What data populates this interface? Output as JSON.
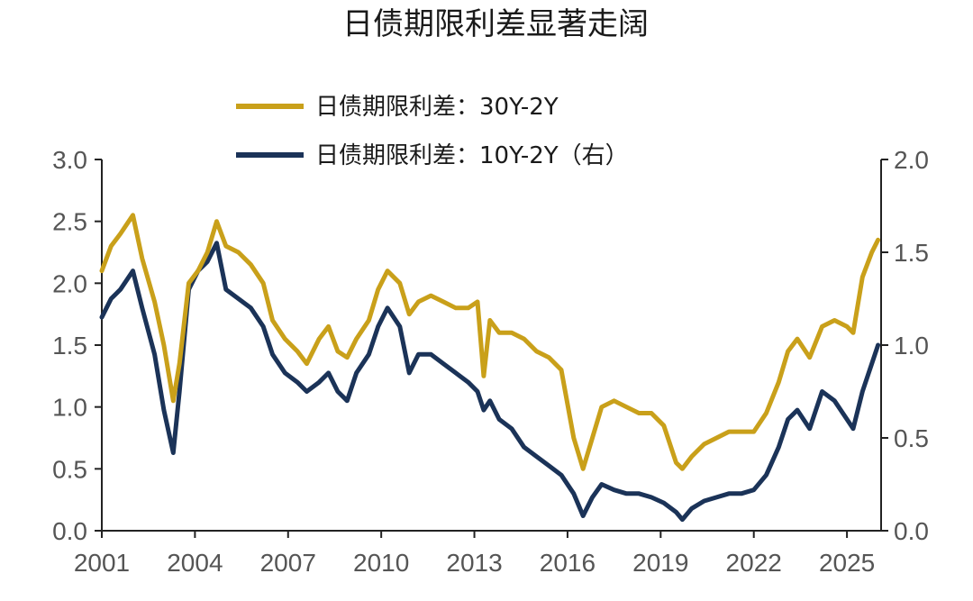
{
  "chart_data": {
    "type": "line",
    "title": "日债期限利差显著走阔",
    "xlabel": "",
    "ylabel": "",
    "x_ticks": [
      "2001",
      "2004",
      "2007",
      "2010",
      "2013",
      "2016",
      "2019",
      "2022",
      "2025"
    ],
    "xlim": [
      2001,
      2026.1
    ],
    "ylim_left": [
      0,
      3.0
    ],
    "ylim_right": [
      0,
      2.0
    ],
    "y_ticks_left": [
      "0.0",
      "0.5",
      "1.0",
      "1.5",
      "2.0",
      "2.5",
      "3.0"
    ],
    "y_ticks_right": [
      "0.0",
      "0.5",
      "1.0",
      "1.5",
      "2.0"
    ],
    "grid": false,
    "legend_position": "top-center",
    "series": [
      {
        "name": "日债期限利差：30Y-2Y",
        "axis": "left",
        "color": "#C9A01A",
        "x": [
          2001.0,
          2001.3,
          2001.6,
          2002.0,
          2002.3,
          2002.7,
          2003.0,
          2003.3,
          2003.5,
          2003.8,
          2004.1,
          2004.4,
          2004.7,
          2005.0,
          2005.4,
          2005.8,
          2006.2,
          2006.5,
          2006.9,
          2007.3,
          2007.6,
          2008.0,
          2008.3,
          2008.6,
          2008.9,
          2009.2,
          2009.6,
          2009.9,
          2010.2,
          2010.6,
          2010.9,
          2011.2,
          2011.6,
          2012.0,
          2012.4,
          2012.8,
          2013.1,
          2013.3,
          2013.5,
          2013.8,
          2014.2,
          2014.6,
          2015.0,
          2015.4,
          2015.8,
          2016.2,
          2016.5,
          2016.8,
          2017.1,
          2017.5,
          2017.9,
          2018.3,
          2018.7,
          2019.1,
          2019.5,
          2019.7,
          2020.0,
          2020.4,
          2020.8,
          2021.2,
          2021.6,
          2022.0,
          2022.4,
          2022.8,
          2023.1,
          2023.4,
          2023.8,
          2024.2,
          2024.6,
          2025.0,
          2025.2,
          2025.5,
          2025.8,
          2026.0
        ],
        "values": [
          2.1,
          2.3,
          2.4,
          2.55,
          2.2,
          1.85,
          1.5,
          1.05,
          1.35,
          2.0,
          2.1,
          2.25,
          2.5,
          2.3,
          2.25,
          2.15,
          2.0,
          1.7,
          1.55,
          1.45,
          1.35,
          1.55,
          1.65,
          1.45,
          1.4,
          1.55,
          1.7,
          1.95,
          2.1,
          2.0,
          1.75,
          1.85,
          1.9,
          1.85,
          1.8,
          1.8,
          1.85,
          1.25,
          1.7,
          1.6,
          1.6,
          1.55,
          1.45,
          1.4,
          1.3,
          0.75,
          0.5,
          0.75,
          1.0,
          1.05,
          1.0,
          0.95,
          0.95,
          0.85,
          0.55,
          0.5,
          0.6,
          0.7,
          0.75,
          0.8,
          0.8,
          0.8,
          0.95,
          1.2,
          1.45,
          1.55,
          1.4,
          1.65,
          1.7,
          1.65,
          1.6,
          2.05,
          2.25,
          2.35
        ]
      },
      {
        "name": "日债期限利差：10Y-2Y（右）",
        "axis": "right",
        "color": "#1B3358",
        "x": [
          2001.0,
          2001.3,
          2001.6,
          2002.0,
          2002.3,
          2002.7,
          2003.0,
          2003.3,
          2003.5,
          2003.8,
          2004.1,
          2004.4,
          2004.7,
          2005.0,
          2005.4,
          2005.8,
          2006.2,
          2006.5,
          2006.9,
          2007.3,
          2007.6,
          2008.0,
          2008.3,
          2008.6,
          2008.9,
          2009.2,
          2009.6,
          2009.9,
          2010.2,
          2010.6,
          2010.9,
          2011.2,
          2011.6,
          2012.0,
          2012.4,
          2012.8,
          2013.1,
          2013.3,
          2013.5,
          2013.8,
          2014.2,
          2014.6,
          2015.0,
          2015.4,
          2015.8,
          2016.2,
          2016.5,
          2016.8,
          2017.1,
          2017.5,
          2017.9,
          2018.3,
          2018.7,
          2019.1,
          2019.5,
          2019.7,
          2020.0,
          2020.4,
          2020.8,
          2021.2,
          2021.6,
          2022.0,
          2022.4,
          2022.8,
          2023.1,
          2023.4,
          2023.8,
          2024.2,
          2024.6,
          2025.0,
          2025.2,
          2025.5,
          2025.8,
          2026.0
        ],
        "values": [
          1.15,
          1.25,
          1.3,
          1.4,
          1.2,
          0.95,
          0.65,
          0.42,
          0.75,
          1.3,
          1.4,
          1.45,
          1.55,
          1.3,
          1.25,
          1.2,
          1.1,
          0.95,
          0.85,
          0.8,
          0.75,
          0.8,
          0.85,
          0.75,
          0.7,
          0.85,
          0.95,
          1.1,
          1.2,
          1.1,
          0.85,
          0.95,
          0.95,
          0.9,
          0.85,
          0.8,
          0.75,
          0.65,
          0.7,
          0.6,
          0.55,
          0.45,
          0.4,
          0.35,
          0.3,
          0.2,
          0.08,
          0.18,
          0.25,
          0.22,
          0.2,
          0.2,
          0.18,
          0.15,
          0.1,
          0.06,
          0.12,
          0.16,
          0.18,
          0.2,
          0.2,
          0.22,
          0.3,
          0.45,
          0.6,
          0.65,
          0.55,
          0.75,
          0.7,
          0.6,
          0.55,
          0.75,
          0.9,
          1.0
        ]
      }
    ]
  }
}
